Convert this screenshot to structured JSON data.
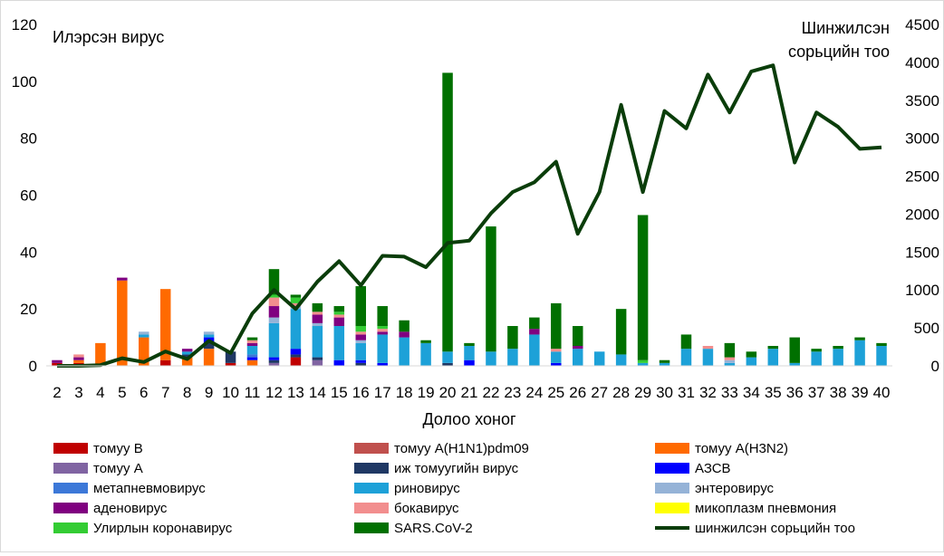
{
  "chart_data": {
    "type": "bar",
    "stacked": true,
    "xlabel": "Долоо хоног",
    "ylabel": "Илэрсэн вирус",
    "y2label": [
      "Шинжилсэн",
      "сорьцийн тоо"
    ],
    "ylim": [
      0,
      120
    ],
    "yticks": [
      0,
      20,
      40,
      60,
      80,
      100,
      120
    ],
    "y2lim": [
      0,
      4500
    ],
    "y2ticks": [
      0,
      500,
      1000,
      1500,
      2000,
      2500,
      3000,
      3500,
      4000,
      4500
    ],
    "legend_position": "bottom",
    "categories": [
      "2",
      "3",
      "4",
      "5",
      "6",
      "7",
      "8",
      "9",
      "10",
      "11",
      "12",
      "13",
      "14",
      "15",
      "16",
      "17",
      "18",
      "19",
      "20",
      "21",
      "22",
      "23",
      "24",
      "25",
      "26",
      "27",
      "28",
      "29",
      "30",
      "31",
      "32",
      "33",
      "34",
      "35",
      "36",
      "37",
      "38",
      "39",
      "40"
    ],
    "series": [
      {
        "name": "томуу B",
        "color": "#c00000",
        "values": [
          1,
          1,
          0,
          0,
          0,
          2,
          0,
          0,
          1,
          0,
          0,
          3,
          0,
          0,
          0,
          0,
          0,
          0,
          0,
          0,
          0,
          0,
          0,
          0,
          0,
          0,
          0,
          0,
          0,
          0,
          0,
          0,
          0,
          0,
          0,
          0,
          0,
          0,
          0
        ]
      },
      {
        "name": "томуу A(H1N1)pdm09",
        "color": "#c0504d",
        "values": [
          0,
          0,
          0,
          0,
          0,
          0,
          0,
          0,
          0,
          0,
          0,
          0,
          0,
          0,
          0,
          0,
          0,
          0,
          0,
          0,
          0,
          0,
          0,
          0,
          0,
          0,
          0,
          0,
          0,
          0,
          0,
          0,
          0,
          0,
          0,
          0,
          0,
          0,
          0
        ]
      },
      {
        "name": "томуу A(H3N2)",
        "color": "#ff6a00",
        "values": [
          0,
          1,
          8,
          30,
          10,
          25,
          3,
          6,
          0,
          2,
          0,
          0,
          0,
          0,
          0,
          0,
          0,
          0,
          0,
          0,
          0,
          0,
          0,
          0,
          0,
          0,
          0,
          0,
          0,
          0,
          0,
          0,
          0,
          0,
          0,
          0,
          0,
          0,
          0
        ]
      },
      {
        "name": "томуу A",
        "color": "#8064a2",
        "values": [
          0,
          0,
          0,
          0,
          0,
          0,
          0,
          0,
          0,
          0,
          1,
          0,
          2,
          0,
          0,
          0,
          0,
          0,
          0,
          0,
          0,
          0,
          0,
          0,
          0,
          0,
          0,
          0,
          0,
          0,
          0,
          0,
          0,
          0,
          0,
          0,
          0,
          0,
          0
        ]
      },
      {
        "name": "иж томуугийн вирус",
        "color": "#1f3864",
        "values": [
          0,
          0,
          0,
          0,
          0,
          0,
          1,
          2,
          4,
          0,
          1,
          1,
          1,
          0,
          1,
          0,
          0,
          0,
          1,
          0,
          0,
          0,
          0,
          0,
          0,
          0,
          0,
          0,
          0,
          0,
          0,
          0,
          0,
          0,
          0,
          0,
          0,
          0,
          0
        ]
      },
      {
        "name": "АЗСВ",
        "color": "#0000ff",
        "values": [
          0,
          0,
          0,
          0,
          0,
          0,
          0,
          2,
          0,
          1,
          1,
          2,
          0,
          2,
          1,
          1,
          0,
          0,
          0,
          2,
          0,
          0,
          0,
          1,
          0,
          0,
          0,
          0,
          0,
          0,
          0,
          0,
          0,
          0,
          0,
          0,
          0,
          0,
          0
        ]
      },
      {
        "name": "метапневмовирус",
        "color": "#3c78d8",
        "values": [
          0,
          0,
          0,
          0,
          0,
          0,
          0,
          0,
          0,
          1,
          0,
          0,
          0,
          0,
          0,
          0,
          0,
          0,
          0,
          0,
          0,
          0,
          0,
          0,
          0,
          0,
          0,
          0,
          0,
          0,
          0,
          0,
          0,
          0,
          0,
          0,
          0,
          0,
          0
        ]
      },
      {
        "name": "риновирус",
        "color": "#1da1d8",
        "values": [
          0,
          0,
          0,
          0,
          1,
          0,
          1,
          1,
          0,
          3,
          12,
          14,
          11,
          12,
          6,
          10,
          10,
          8,
          4,
          5,
          5,
          6,
          11,
          4,
          6,
          5,
          4,
          1,
          1,
          6,
          6,
          1,
          3,
          6,
          1,
          5,
          6,
          9,
          7
        ]
      },
      {
        "name": "энтеровирус",
        "color": "#95b3d7",
        "values": [
          0,
          0,
          0,
          0,
          1,
          0,
          0,
          1,
          0,
          0,
          2,
          1,
          1,
          0,
          1,
          0,
          0,
          0,
          0,
          0,
          0,
          0,
          0,
          0,
          0,
          0,
          0,
          0,
          0,
          0,
          0,
          1,
          0,
          0,
          0,
          0,
          0,
          0,
          0
        ]
      },
      {
        "name": "аденовирус",
        "color": "#800080",
        "values": [
          1,
          1,
          0,
          1,
          0,
          0,
          1,
          0,
          0,
          1,
          4,
          0,
          3,
          3,
          2,
          1,
          2,
          0,
          0,
          0,
          0,
          0,
          2,
          0,
          1,
          0,
          0,
          0,
          0,
          0,
          0,
          0,
          0,
          0,
          0,
          0,
          0,
          0,
          0
        ]
      },
      {
        "name": "бокавирус",
        "color": "#f28e8e",
        "values": [
          0,
          1,
          0,
          0,
          0,
          0,
          0,
          0,
          0,
          1,
          3,
          1,
          1,
          1,
          1,
          1,
          0,
          0,
          0,
          0,
          0,
          0,
          0,
          1,
          0,
          0,
          0,
          0,
          0,
          0,
          1,
          1,
          0,
          0,
          0,
          0,
          0,
          0,
          0
        ]
      },
      {
        "name": "микоплазм пневмония",
        "color": "#ffff00",
        "values": [
          0,
          0,
          0,
          0,
          0,
          0,
          0,
          0,
          0,
          0,
          0,
          0,
          0,
          0,
          0,
          0,
          0,
          0,
          0,
          0,
          0,
          0,
          0,
          0,
          0,
          0,
          0,
          0,
          0,
          0,
          0,
          0,
          0,
          0,
          0,
          0,
          0,
          0,
          0
        ]
      },
      {
        "name": "Улирлын коронавирус",
        "color": "#33cc33",
        "values": [
          0,
          0,
          0,
          0,
          0,
          0,
          0,
          0,
          0,
          0,
          1,
          2,
          0,
          1,
          2,
          1,
          0,
          0,
          0,
          0,
          0,
          0,
          0,
          0,
          0,
          0,
          0,
          1,
          0,
          0,
          0,
          0,
          0,
          0,
          0,
          0,
          0,
          0,
          0
        ]
      },
      {
        "name": "SARS.CoV-2",
        "color": "#007000",
        "values": [
          0,
          0,
          0,
          0,
          0,
          0,
          0,
          0,
          0,
          1,
          9,
          1,
          3,
          2,
          14,
          7,
          4,
          1,
          98,
          1,
          44,
          8,
          4,
          16,
          7,
          0,
          16,
          51,
          1,
          5,
          0,
          5,
          2,
          1,
          9,
          1,
          1,
          1,
          1
        ]
      }
    ],
    "line_series": {
      "name": "шинжилсэн сорьцийн тоо",
      "color": "#0a3d0a",
      "axis": "right",
      "values": [
        0,
        0,
        10,
        100,
        50,
        190,
        90,
        330,
        170,
        690,
        1000,
        750,
        1110,
        1380,
        1060,
        1450,
        1440,
        1300,
        1620,
        1650,
        2010,
        2290,
        2420,
        2690,
        1740,
        2290,
        3440,
        2290,
        3360,
        3130,
        3840,
        3340,
        3880,
        3960,
        2680,
        3340,
        3150,
        2860,
        2880
      ]
    }
  }
}
